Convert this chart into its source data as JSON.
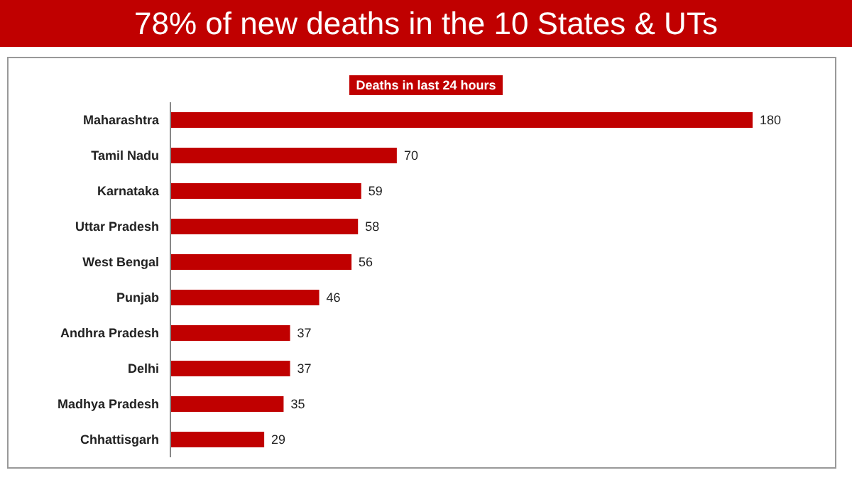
{
  "chart_data": {
    "type": "bar",
    "orientation": "horizontal",
    "title": "78% of new deaths in the 10 States & UTs",
    "subtitle": "Deaths in last 24 hours",
    "categories": [
      "Maharashtra",
      "Tamil Nadu",
      "Karnataka",
      "Uttar Pradesh",
      "West Bengal",
      "Punjab",
      "Andhra Pradesh",
      "Delhi",
      "Madhya Pradesh",
      "Chhattisgarh"
    ],
    "values": [
      180,
      70,
      59,
      58,
      56,
      46,
      37,
      37,
      35,
      29
    ],
    "color": "#c00000",
    "data_labels": true
  }
}
